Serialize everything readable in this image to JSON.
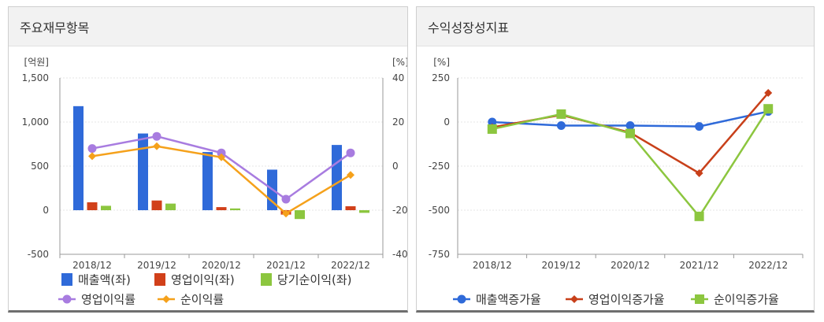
{
  "panels": {
    "left": {
      "title": "주요재무항목"
    },
    "right": {
      "title": "수익성장성지표"
    }
  },
  "chart_data": [
    {
      "type": "bar",
      "title": "주요재무항목",
      "categories": [
        "2018/12",
        "2019/12",
        "2020/12",
        "2021/12",
        "2022/12"
      ],
      "y_left": {
        "label": "[억원]",
        "ylim": [
          -500,
          1500
        ],
        "ticks": [
          -500,
          0,
          500,
          "1,000",
          "1,500"
        ]
      },
      "y_right": {
        "label": "[%]",
        "ylim": [
          -40,
          40
        ],
        "ticks": [
          -40,
          -20,
          0,
          20,
          40
        ]
      },
      "series": [
        {
          "name": "매출액(좌)",
          "kind": "bar",
          "axis": "left",
          "color": "#2f6ad9",
          "values": [
            1180,
            870,
            660,
            460,
            740
          ]
        },
        {
          "name": "영업이익(좌)",
          "kind": "bar",
          "axis": "left",
          "color": "#d1401a",
          "values": [
            90,
            110,
            35,
            -50,
            45
          ]
        },
        {
          "name": "당기순이익(좌)",
          "kind": "bar",
          "axis": "left",
          "color": "#8cc63f",
          "values": [
            50,
            75,
            20,
            -100,
            -30
          ]
        },
        {
          "name": "영업이익률",
          "kind": "line",
          "axis": "right",
          "color": "#a87ce0",
          "marker": "circle",
          "values": [
            8,
            13.5,
            6,
            -15,
            6
          ]
        },
        {
          "name": "순이익률",
          "kind": "line",
          "axis": "right",
          "color": "#f5a11b",
          "marker": "diamond",
          "values": [
            4.5,
            9,
            4,
            -21.5,
            -4
          ]
        }
      ],
      "legend": [
        [
          "매출액(좌)",
          "영업이익(좌)",
          "당기순이익(좌)"
        ],
        [
          "영업이익률",
          "순이익률"
        ]
      ]
    },
    {
      "type": "line",
      "title": "수익성장성지표",
      "categories": [
        "2018/12",
        "2019/12",
        "2020/12",
        "2021/12",
        "2022/12"
      ],
      "y": {
        "label": "[%]",
        "ylim": [
          -750,
          250
        ],
        "ticks": [
          -750,
          -500,
          -250,
          0,
          250
        ]
      },
      "series": [
        {
          "name": "매출액증가율",
          "color": "#2f6ad9",
          "marker": "circle",
          "values": [
            0,
            -20,
            -20,
            -25,
            60
          ]
        },
        {
          "name": "영업이익증가율",
          "color": "#c8401a",
          "marker": "diamond",
          "values": [
            -30,
            40,
            -60,
            -290,
            165
          ]
        },
        {
          "name": "순이익증가율",
          "color": "#8cc63f",
          "marker": "square",
          "values": [
            -40,
            45,
            -65,
            -535,
            75
          ]
        }
      ],
      "legend": [
        [
          "매출액증가율",
          "영업이익증가율",
          "순이익증가율"
        ]
      ]
    }
  ]
}
